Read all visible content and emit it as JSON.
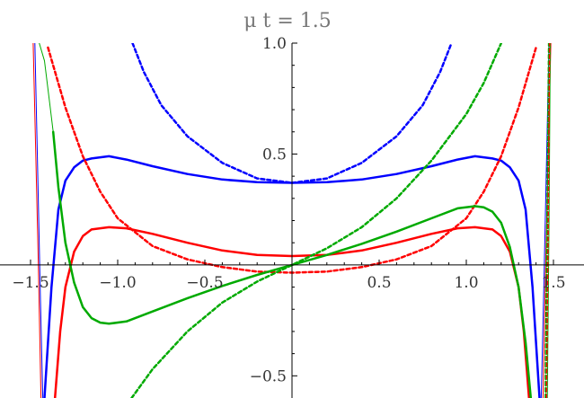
{
  "chart_data": {
    "type": "line",
    "title": "μ t = 1.5",
    "xlabel": "",
    "ylabel": "",
    "xlim": [
      -1.5,
      1.5
    ],
    "ylim": [
      -0.6,
      1.0
    ],
    "x_ticks": [
      {
        "value": -1.5,
        "label": "−1.5"
      },
      {
        "value": -1.0,
        "label": "−1.0"
      },
      {
        "value": -0.5,
        "label": "−0.5"
      },
      {
        "value": 0.5,
        "label": "0.5"
      },
      {
        "value": 1.0,
        "label": "1.0"
      },
      {
        "value": 1.5,
        "label": "1.5"
      }
    ],
    "y_ticks": [
      {
        "value": 1.0,
        "label": "1.0"
      },
      {
        "value": 0.5,
        "label": "0.5"
      },
      {
        "value": -0.5,
        "label": "−0.5"
      }
    ],
    "grid": false,
    "legend": "none",
    "series": [
      {
        "color": "#0000ff",
        "style": "solid",
        "width": 2.5,
        "points": [
          [
            -1.42,
            -0.6
          ],
          [
            -1.38,
            -0.1
          ],
          [
            -1.34,
            0.25
          ],
          [
            -1.3,
            0.38
          ],
          [
            -1.25,
            0.44
          ],
          [
            -1.2,
            0.47
          ],
          [
            -1.15,
            0.48
          ],
          [
            -1.05,
            0.49
          ],
          [
            -0.95,
            0.475
          ],
          [
            -0.8,
            0.445
          ],
          [
            -0.6,
            0.41
          ],
          [
            -0.4,
            0.385
          ],
          [
            -0.2,
            0.373
          ],
          [
            0.0,
            0.37
          ],
          [
            0.2,
            0.373
          ],
          [
            0.4,
            0.385
          ],
          [
            0.6,
            0.41
          ],
          [
            0.8,
            0.445
          ],
          [
            0.95,
            0.475
          ],
          [
            1.05,
            0.49
          ],
          [
            1.15,
            0.48
          ],
          [
            1.2,
            0.47
          ],
          [
            1.25,
            0.44
          ],
          [
            1.3,
            0.38
          ],
          [
            1.34,
            0.25
          ],
          [
            1.38,
            -0.1
          ],
          [
            1.42,
            -0.6
          ]
        ]
      },
      {
        "color": "#0000ff",
        "style": "solid",
        "width": 1,
        "points": [
          [
            -1.475,
            1.0
          ],
          [
            -1.46,
            0.45
          ],
          [
            -1.445,
            -0.1
          ],
          [
            -1.43,
            -0.6
          ]
        ]
      },
      {
        "color": "#0000ff",
        "style": "solid",
        "width": 1,
        "points": [
          [
            1.43,
            -0.6
          ],
          [
            1.445,
            -0.1
          ],
          [
            1.46,
            0.45
          ],
          [
            1.475,
            1.0
          ]
        ]
      },
      {
        "color": "#0000ff",
        "style": "dashed",
        "width": 2.5,
        "points": [
          [
            -0.915,
            1.0
          ],
          [
            -0.85,
            0.87
          ],
          [
            -0.75,
            0.72
          ],
          [
            -0.6,
            0.58
          ],
          [
            -0.4,
            0.46
          ],
          [
            -0.2,
            0.39
          ],
          [
            0.0,
            0.37
          ],
          [
            0.2,
            0.39
          ],
          [
            0.4,
            0.46
          ],
          [
            0.6,
            0.58
          ],
          [
            0.75,
            0.72
          ],
          [
            0.85,
            0.87
          ],
          [
            0.915,
            1.0
          ]
        ]
      },
      {
        "color": "#ff0000",
        "style": "solid",
        "width": 2.5,
        "points": [
          [
            -1.36,
            -0.6
          ],
          [
            -1.33,
            -0.3
          ],
          [
            -1.3,
            -0.1
          ],
          [
            -1.25,
            0.06
          ],
          [
            -1.2,
            0.13
          ],
          [
            -1.15,
            0.16
          ],
          [
            -1.05,
            0.17
          ],
          [
            -0.95,
            0.165
          ],
          [
            -0.8,
            0.14
          ],
          [
            -0.6,
            0.1
          ],
          [
            -0.4,
            0.065
          ],
          [
            -0.2,
            0.045
          ],
          [
            0.0,
            0.04
          ],
          [
            0.2,
            0.045
          ],
          [
            0.4,
            0.065
          ],
          [
            0.6,
            0.1
          ],
          [
            0.8,
            0.14
          ],
          [
            0.95,
            0.165
          ],
          [
            1.05,
            0.17
          ],
          [
            1.15,
            0.16
          ],
          [
            1.2,
            0.13
          ],
          [
            1.25,
            0.06
          ],
          [
            1.3,
            -0.1
          ],
          [
            1.33,
            -0.3
          ],
          [
            1.36,
            -0.6
          ]
        ]
      },
      {
        "color": "#ff0000",
        "style": "solid",
        "width": 1,
        "points": [
          [
            -1.485,
            1.0
          ],
          [
            -1.47,
            0.5
          ],
          [
            -1.455,
            0.0
          ],
          [
            -1.44,
            -0.6
          ]
        ]
      },
      {
        "color": "#ff0000",
        "style": "solid",
        "width": 1,
        "points": [
          [
            1.44,
            -0.6
          ],
          [
            1.455,
            0.0
          ],
          [
            1.47,
            0.5
          ],
          [
            1.485,
            1.0
          ]
        ]
      },
      {
        "color": "#ff0000",
        "style": "dashed",
        "width": 2.5,
        "points": [
          [
            -1.4,
            0.98
          ],
          [
            -1.3,
            0.71
          ],
          [
            -1.2,
            0.49
          ],
          [
            -1.1,
            0.33
          ],
          [
            -1.0,
            0.21
          ],
          [
            -0.8,
            0.085
          ],
          [
            -0.6,
            0.025
          ],
          [
            -0.4,
            -0.01
          ],
          [
            -0.2,
            -0.03
          ],
          [
            0.0,
            -0.035
          ],
          [
            0.2,
            -0.03
          ],
          [
            0.4,
            -0.01
          ],
          [
            0.6,
            0.025
          ],
          [
            0.8,
            0.085
          ],
          [
            1.0,
            0.21
          ],
          [
            1.1,
            0.33
          ],
          [
            1.2,
            0.49
          ],
          [
            1.3,
            0.71
          ],
          [
            1.4,
            0.98
          ]
        ]
      },
      {
        "color": "#00aa00",
        "style": "solid",
        "width": 2.5,
        "points": [
          [
            -1.37,
            0.6
          ],
          [
            -1.34,
            0.35
          ],
          [
            -1.3,
            0.1
          ],
          [
            -1.25,
            -0.08
          ],
          [
            -1.2,
            -0.19
          ],
          [
            -1.15,
            -0.24
          ],
          [
            -1.1,
            -0.26
          ],
          [
            -1.05,
            -0.265
          ],
          [
            -0.95,
            -0.255
          ],
          [
            -0.8,
            -0.21
          ],
          [
            -0.6,
            -0.15
          ],
          [
            -0.4,
            -0.095
          ],
          [
            -0.2,
            -0.045
          ],
          [
            0.0,
            0.0
          ],
          [
            0.2,
            0.045
          ],
          [
            0.4,
            0.095
          ],
          [
            0.6,
            0.15
          ],
          [
            0.8,
            0.21
          ],
          [
            0.95,
            0.255
          ],
          [
            1.05,
            0.265
          ],
          [
            1.1,
            0.26
          ],
          [
            1.15,
            0.24
          ],
          [
            1.2,
            0.19
          ],
          [
            1.25,
            0.08
          ],
          [
            1.3,
            -0.1
          ],
          [
            1.34,
            -0.35
          ],
          [
            1.37,
            -0.6
          ]
        ]
      },
      {
        "color": "#00aa00",
        "style": "solid",
        "width": 1,
        "points": [
          [
            -1.45,
            1.0
          ],
          [
            -1.42,
            0.92
          ],
          [
            -1.39,
            0.73
          ],
          [
            -1.37,
            0.6
          ]
        ]
      },
      {
        "color": "#00aa00",
        "style": "solid",
        "width": 1,
        "points": [
          [
            1.465,
            -0.6
          ],
          [
            1.475,
            0.2
          ],
          [
            1.482,
            1.0
          ]
        ]
      },
      {
        "color": "#00aa00",
        "style": "dashed",
        "width": 2.5,
        "points": [
          [
            -0.92,
            -0.6
          ],
          [
            -0.8,
            -0.47
          ],
          [
            -0.6,
            -0.3
          ],
          [
            -0.4,
            -0.17
          ],
          [
            -0.2,
            -0.075
          ],
          [
            0.0,
            0.0
          ],
          [
            0.2,
            0.075
          ],
          [
            0.4,
            0.17
          ],
          [
            0.6,
            0.3
          ],
          [
            0.8,
            0.47
          ],
          [
            1.0,
            0.68
          ],
          [
            1.1,
            0.82
          ],
          [
            1.2,
            1.0
          ]
        ]
      },
      {
        "color": "#00aa00",
        "style": "dashed",
        "width": 2.5,
        "points": [
          [
            1.455,
            -0.6
          ],
          [
            1.465,
            0.2
          ],
          [
            1.475,
            1.0
          ]
        ]
      },
      {
        "color": "#ff0000",
        "style": "dashed",
        "width": 1.5,
        "points": [
          [
            1.46,
            -0.6
          ],
          [
            1.47,
            0.2
          ],
          [
            1.478,
            1.0
          ]
        ]
      }
    ]
  }
}
